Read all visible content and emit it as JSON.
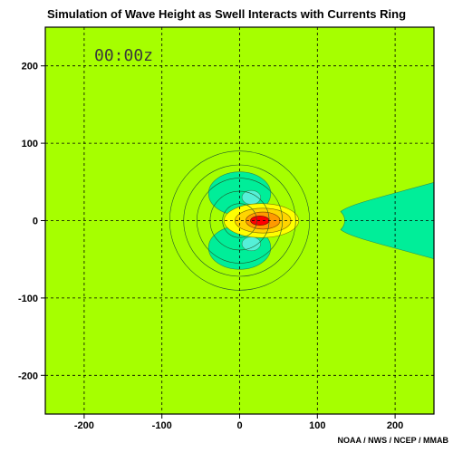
{
  "chart_data": {
    "type": "contour",
    "title": "Simulation of Wave Height as Swell Interacts with Currents Ring",
    "timestamp": "00:00z",
    "credit": "NOAA / NWS / NCEP / MMAB",
    "xlabel": "",
    "ylabel": "",
    "xlim": [
      -250,
      250
    ],
    "ylim": [
      -250,
      250
    ],
    "x_ticks": [
      -200,
      -100,
      0,
      100,
      200
    ],
    "y_ticks": [
      -200,
      -100,
      0,
      100,
      200
    ],
    "grid": true,
    "grid_style": "dashed",
    "colors": {
      "background_field": "#a6ff00",
      "low_lobes": "#00ee99",
      "lowest_cores": "#55f0d8",
      "yellow_1": "#ffff00",
      "yellow_2": "#ffd400",
      "orange": "#ff9a00",
      "peak": "#ff0000"
    },
    "current_ring": {
      "center": [
        0,
        0
      ],
      "radii": [
        90,
        72,
        55,
        38,
        22
      ]
    },
    "features": [
      {
        "name": "upper-low-lobe",
        "center": [
          0,
          35
        ],
        "rx": 40,
        "ry": 28
      },
      {
        "name": "lower-low-lobe",
        "center": [
          0,
          -35
        ],
        "rx": 40,
        "ry": 28
      },
      {
        "name": "upper-low-core",
        "center": [
          15,
          30
        ],
        "rx": 12,
        "ry": 9
      },
      {
        "name": "lower-low-core",
        "center": [
          15,
          -30
        ],
        "rx": 12,
        "ry": 9
      },
      {
        "name": "high-yellow-1",
        "center": [
          28,
          0
        ],
        "rx": 48,
        "ry": 22
      },
      {
        "name": "high-yellow-2",
        "center": [
          30,
          0
        ],
        "rx": 36,
        "ry": 16
      },
      {
        "name": "high-orange",
        "center": [
          30,
          0
        ],
        "rx": 22,
        "ry": 11
      },
      {
        "name": "high-peak",
        "center": [
          26,
          0
        ],
        "rx": 12,
        "ry": 6
      },
      {
        "name": "eastern-low-region",
        "x_start": 130,
        "y_half_width_at_edge": 50
      }
    ]
  }
}
